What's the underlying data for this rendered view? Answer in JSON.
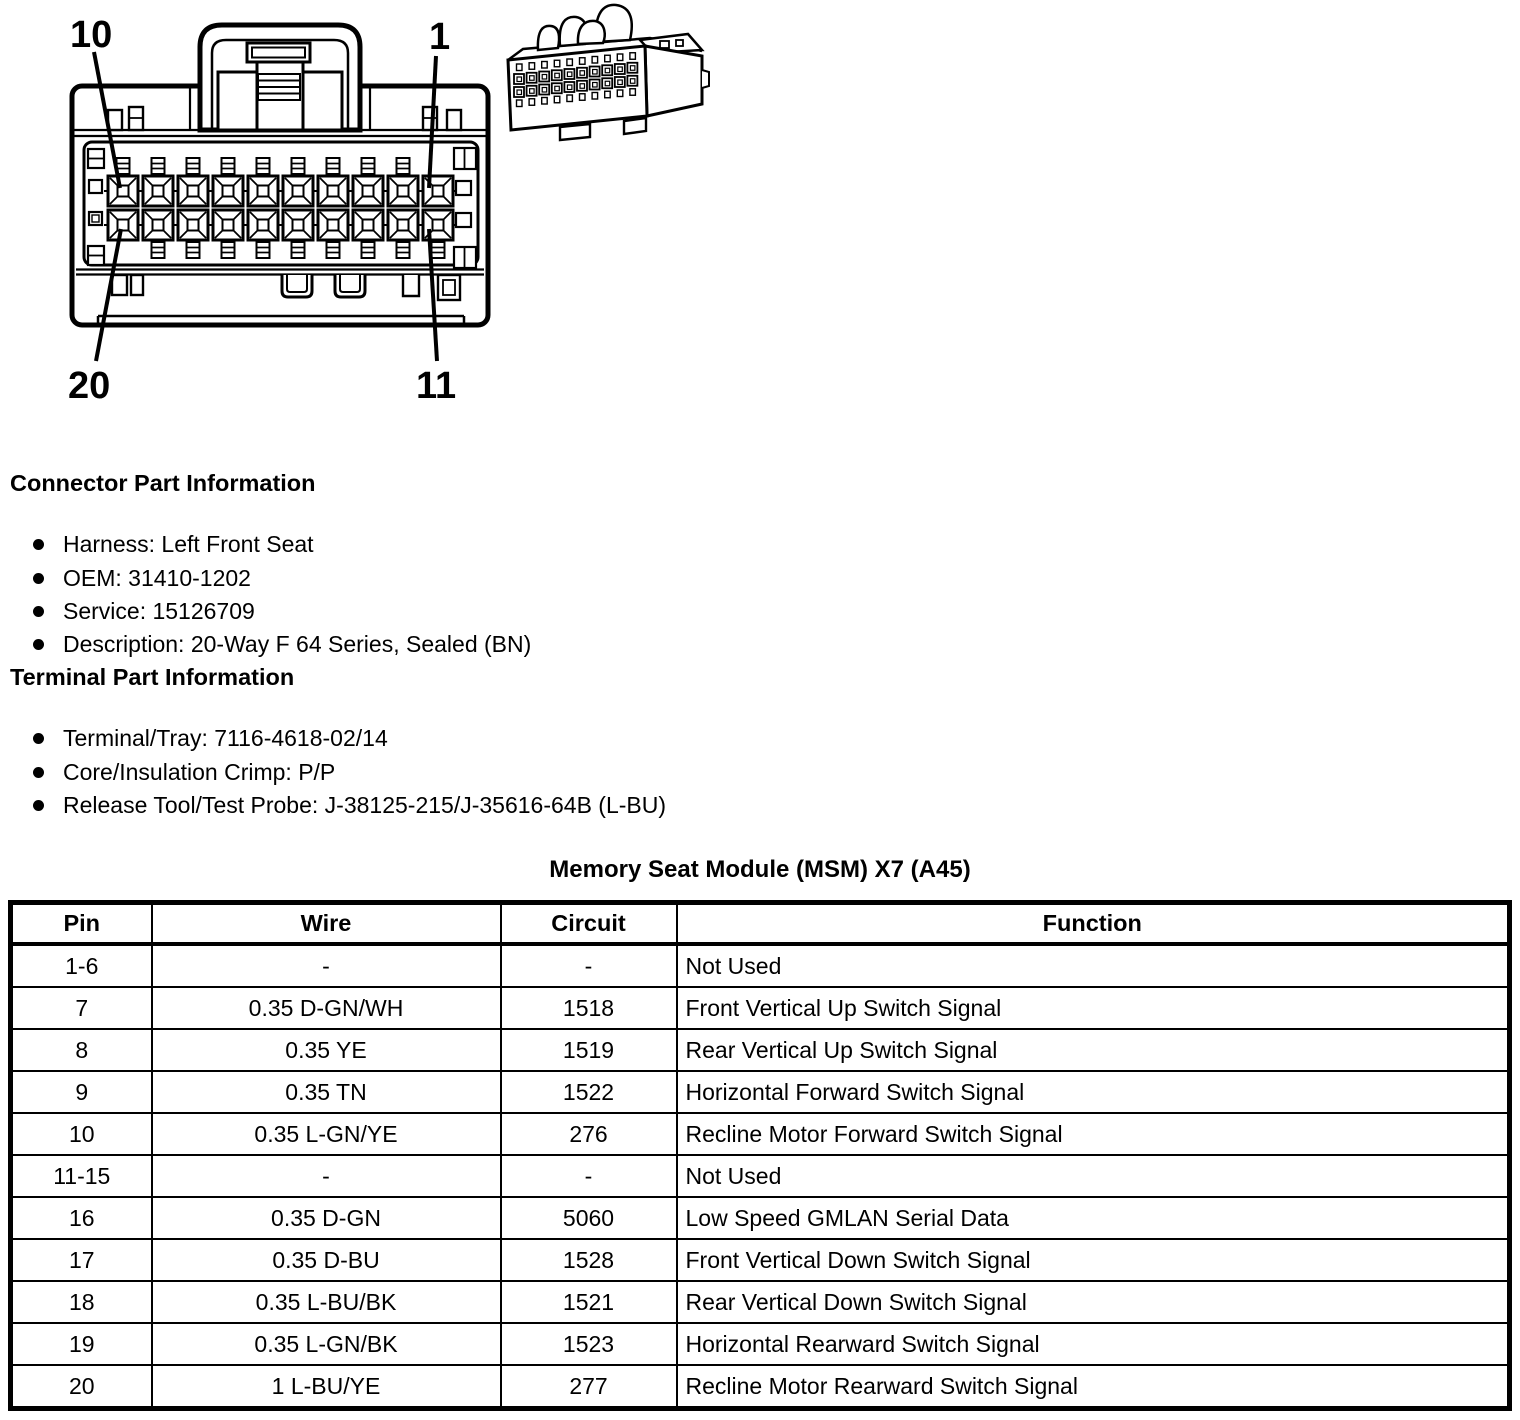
{
  "page": {
    "colors": {
      "ink": "#000000",
      "background": "#ffffff"
    }
  },
  "diagram": {
    "pin_labels": {
      "top_left": "10",
      "top_right": "1",
      "bottom_left": "20",
      "bottom_right": "11"
    }
  },
  "connector_part_information": {
    "heading": "Connector Part Information",
    "items": [
      "Harness: Left Front Seat",
      "OEM: 31410-1202",
      "Service: 15126709",
      "Description: 20-Way F 64 Series, Sealed (BN)"
    ]
  },
  "terminal_part_information": {
    "heading": "Terminal Part Information",
    "items": [
      "Terminal/Tray: 7116-4618-02/14",
      "Core/Insulation Crimp: P/P",
      "Release Tool/Test Probe: J-38125-215/J-35616-64B (L-BU)"
    ]
  },
  "table": {
    "title": "Memory Seat Module (MSM) X7 (A45)",
    "columns": [
      "Pin",
      "Wire",
      "Circuit",
      "Function"
    ],
    "rows": [
      [
        "1-6",
        "-",
        "-",
        "Not Used"
      ],
      [
        "7",
        "0.35 D-GN/WH",
        "1518",
        "Front Vertical Up Switch Signal"
      ],
      [
        "8",
        "0.35 YE",
        "1519",
        "Rear Vertical Up Switch Signal"
      ],
      [
        "9",
        "0.35 TN",
        "1522",
        "Horizontal Forward Switch Signal"
      ],
      [
        "10",
        "0.35 L-GN/YE",
        "276",
        "Recline Motor Forward Switch Signal"
      ],
      [
        "11-15",
        "-",
        "-",
        "Not Used"
      ],
      [
        "16",
        "0.35 D-GN",
        "5060",
        "Low Speed GMLAN Serial Data"
      ],
      [
        "17",
        "0.35 D-BU",
        "1528",
        "Front Vertical Down Switch Signal"
      ],
      [
        "18",
        "0.35 L-BU/BK",
        "1521",
        "Rear Vertical Down Switch Signal"
      ],
      [
        "19",
        "0.35 L-GN/BK",
        "1523",
        "Horizontal Rearward Switch Signal"
      ],
      [
        "20",
        "1 L-BU/YE",
        "277",
        "Recline Motor Rearward Switch Signal"
      ]
    ]
  }
}
